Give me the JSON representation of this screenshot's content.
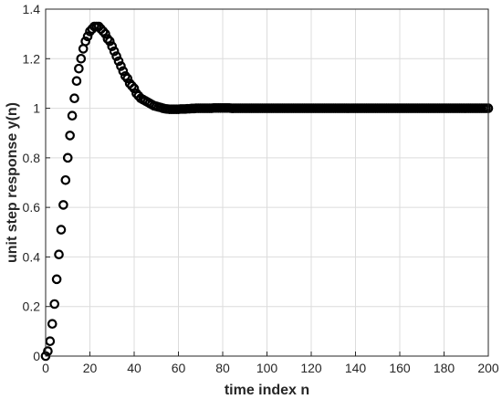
{
  "chart_data": {
    "type": "scatter",
    "title": "",
    "xlabel": "time index n",
    "ylabel": "unit step response y(n)",
    "xlim": [
      0,
      200
    ],
    "ylim": [
      0,
      1.4
    ],
    "xticks": [
      0,
      20,
      40,
      60,
      80,
      100,
      120,
      140,
      160,
      180,
      200
    ],
    "yticks": [
      0,
      0.2,
      0.4,
      0.6,
      0.8,
      1,
      1.2,
      1.4
    ],
    "xtick_labels": [
      "0",
      "20",
      "40",
      "60",
      "80",
      "100",
      "120",
      "140",
      "160",
      "180",
      "200"
    ],
    "ytick_labels": [
      "0",
      "0.2",
      "0.4",
      "0.6",
      "0.8",
      "1",
      "1.2",
      "1.4"
    ],
    "grid": true,
    "marker": "open-circle",
    "colors": {
      "marker": "#000000",
      "grid": "#dcdcdc",
      "axis": "#262626"
    },
    "series": [
      {
        "values": [
          [
            0,
            0.0
          ],
          [
            1,
            0.02
          ],
          [
            2,
            0.06
          ],
          [
            3,
            0.13
          ],
          [
            4,
            0.21
          ],
          [
            5,
            0.31
          ],
          [
            6,
            0.41
          ],
          [
            7,
            0.51
          ],
          [
            8,
            0.61
          ],
          [
            9,
            0.71
          ],
          [
            10,
            0.8
          ],
          [
            11,
            0.89
          ],
          [
            12,
            0.97
          ],
          [
            13,
            1.04
          ],
          [
            14,
            1.11
          ],
          [
            15,
            1.16
          ],
          [
            16,
            1.2
          ],
          [
            17,
            1.24
          ],
          [
            18,
            1.27
          ],
          [
            19,
            1.29
          ],
          [
            20,
            1.31
          ],
          [
            21,
            1.32
          ],
          [
            22,
            1.33
          ],
          [
            23,
            1.33
          ],
          [
            24,
            1.33
          ],
          [
            25,
            1.32
          ],
          [
            26,
            1.31
          ],
          [
            27,
            1.3
          ],
          [
            28,
            1.28
          ],
          [
            29,
            1.27
          ],
          [
            30,
            1.25
          ],
          [
            31,
            1.23
          ],
          [
            32,
            1.21
          ],
          [
            33,
            1.19
          ],
          [
            34,
            1.17
          ],
          [
            35,
            1.15
          ],
          [
            36,
            1.13
          ],
          [
            37,
            1.12
          ],
          [
            38,
            1.1
          ],
          [
            39,
            1.09
          ],
          [
            40,
            1.08
          ],
          [
            41,
            1.06
          ],
          [
            42,
            1.05
          ],
          [
            43,
            1.04
          ],
          [
            44,
            1.035
          ],
          [
            45,
            1.03
          ],
          [
            46,
            1.025
          ],
          [
            47,
            1.02
          ],
          [
            48,
            1.015
          ],
          [
            49,
            1.01
          ],
          [
            50,
            1.008
          ],
          [
            51,
            1.005
          ],
          [
            52,
            1.003
          ],
          [
            53,
            1.0
          ],
          [
            54,
            0.998
          ],
          [
            55,
            0.997
          ],
          [
            56,
            0.996
          ],
          [
            57,
            0.996
          ],
          [
            58,
            0.996
          ],
          [
            59,
            0.996
          ],
          [
            60,
            0.996
          ],
          [
            61,
            0.997
          ],
          [
            62,
            0.997
          ],
          [
            63,
            0.997
          ],
          [
            64,
            0.998
          ],
          [
            65,
            0.998
          ],
          [
            66,
            0.999
          ],
          [
            67,
            0.999
          ],
          [
            68,
            1.0
          ],
          [
            69,
            1.0
          ],
          [
            70,
            1.0
          ],
          [
            71,
            1.0
          ],
          [
            72,
            1.0
          ],
          [
            73,
            1.0
          ],
          [
            74,
            1.0
          ],
          [
            75,
            1.0
          ],
          [
            76,
            1.001
          ],
          [
            77,
            1.001
          ],
          [
            78,
            1.001
          ],
          [
            79,
            1.001
          ],
          [
            80,
            1.001
          ],
          [
            81,
            1.001
          ],
          [
            82,
            1.001
          ],
          [
            83,
            1.001
          ],
          [
            84,
            1.0
          ],
          [
            85,
            1.0
          ],
          [
            86,
            1.0
          ],
          [
            87,
            1.0
          ],
          [
            88,
            1.0
          ],
          [
            89,
            1.0
          ],
          [
            90,
            1.0
          ],
          [
            91,
            1.0
          ],
          [
            92,
            1.0
          ],
          [
            93,
            1.0
          ],
          [
            94,
            1.0
          ],
          [
            95,
            1.0
          ],
          [
            96,
            1.0
          ],
          [
            97,
            1.0
          ],
          [
            98,
            1.0
          ],
          [
            99,
            1.0
          ],
          [
            100,
            1.0
          ],
          [
            101,
            1.0
          ],
          [
            102,
            1.0
          ],
          [
            103,
            1.0
          ],
          [
            104,
            1.0
          ],
          [
            105,
            1.0
          ],
          [
            106,
            1.0
          ],
          [
            107,
            1.0
          ],
          [
            108,
            1.0
          ],
          [
            109,
            1.0
          ],
          [
            110,
            1.0
          ],
          [
            111,
            1.0
          ],
          [
            112,
            1.0
          ],
          [
            113,
            1.0
          ],
          [
            114,
            1.0
          ],
          [
            115,
            1.0
          ],
          [
            116,
            1.0
          ],
          [
            117,
            1.0
          ],
          [
            118,
            1.0
          ],
          [
            119,
            1.0
          ],
          [
            120,
            1.0
          ],
          [
            121,
            1.0
          ],
          [
            122,
            1.0
          ],
          [
            123,
            1.0
          ],
          [
            124,
            1.0
          ],
          [
            125,
            1.0
          ],
          [
            126,
            1.0
          ],
          [
            127,
            1.0
          ],
          [
            128,
            1.0
          ],
          [
            129,
            1.0
          ],
          [
            130,
            1.0
          ],
          [
            131,
            1.0
          ],
          [
            132,
            1.0
          ],
          [
            133,
            1.0
          ],
          [
            134,
            1.0
          ],
          [
            135,
            1.0
          ],
          [
            136,
            1.0
          ],
          [
            137,
            1.0
          ],
          [
            138,
            1.0
          ],
          [
            139,
            1.0
          ],
          [
            140,
            1.0
          ],
          [
            141,
            1.0
          ],
          [
            142,
            1.0
          ],
          [
            143,
            1.0
          ],
          [
            144,
            1.0
          ],
          [
            145,
            1.0
          ],
          [
            146,
            1.0
          ],
          [
            147,
            1.0
          ],
          [
            148,
            1.0
          ],
          [
            149,
            1.0
          ],
          [
            150,
            1.0
          ],
          [
            151,
            1.0
          ],
          [
            152,
            1.0
          ],
          [
            153,
            1.0
          ],
          [
            154,
            1.0
          ],
          [
            155,
            1.0
          ],
          [
            156,
            1.0
          ],
          [
            157,
            1.0
          ],
          [
            158,
            1.0
          ],
          [
            159,
            1.0
          ],
          [
            160,
            1.0
          ],
          [
            161,
            1.0
          ],
          [
            162,
            1.0
          ],
          [
            163,
            1.0
          ],
          [
            164,
            1.0
          ],
          [
            165,
            1.0
          ],
          [
            166,
            1.0
          ],
          [
            167,
            1.0
          ],
          [
            168,
            1.0
          ],
          [
            169,
            1.0
          ],
          [
            170,
            1.0
          ],
          [
            171,
            1.0
          ],
          [
            172,
            1.0
          ],
          [
            173,
            1.0
          ],
          [
            174,
            1.0
          ],
          [
            175,
            1.0
          ],
          [
            176,
            1.0
          ],
          [
            177,
            1.0
          ],
          [
            178,
            1.0
          ],
          [
            179,
            1.0
          ],
          [
            180,
            1.0
          ],
          [
            181,
            1.0
          ],
          [
            182,
            1.0
          ],
          [
            183,
            1.0
          ],
          [
            184,
            1.0
          ],
          [
            185,
            1.0
          ],
          [
            186,
            1.0
          ],
          [
            187,
            1.0
          ],
          [
            188,
            1.0
          ],
          [
            189,
            1.0
          ],
          [
            190,
            1.0
          ],
          [
            191,
            1.0
          ],
          [
            192,
            1.0
          ],
          [
            193,
            1.0
          ],
          [
            194,
            1.0
          ],
          [
            195,
            1.0
          ],
          [
            196,
            1.0
          ],
          [
            197,
            1.0
          ],
          [
            198,
            1.0
          ],
          [
            199,
            1.0
          ],
          [
            200,
            1.0
          ]
        ]
      }
    ]
  }
}
